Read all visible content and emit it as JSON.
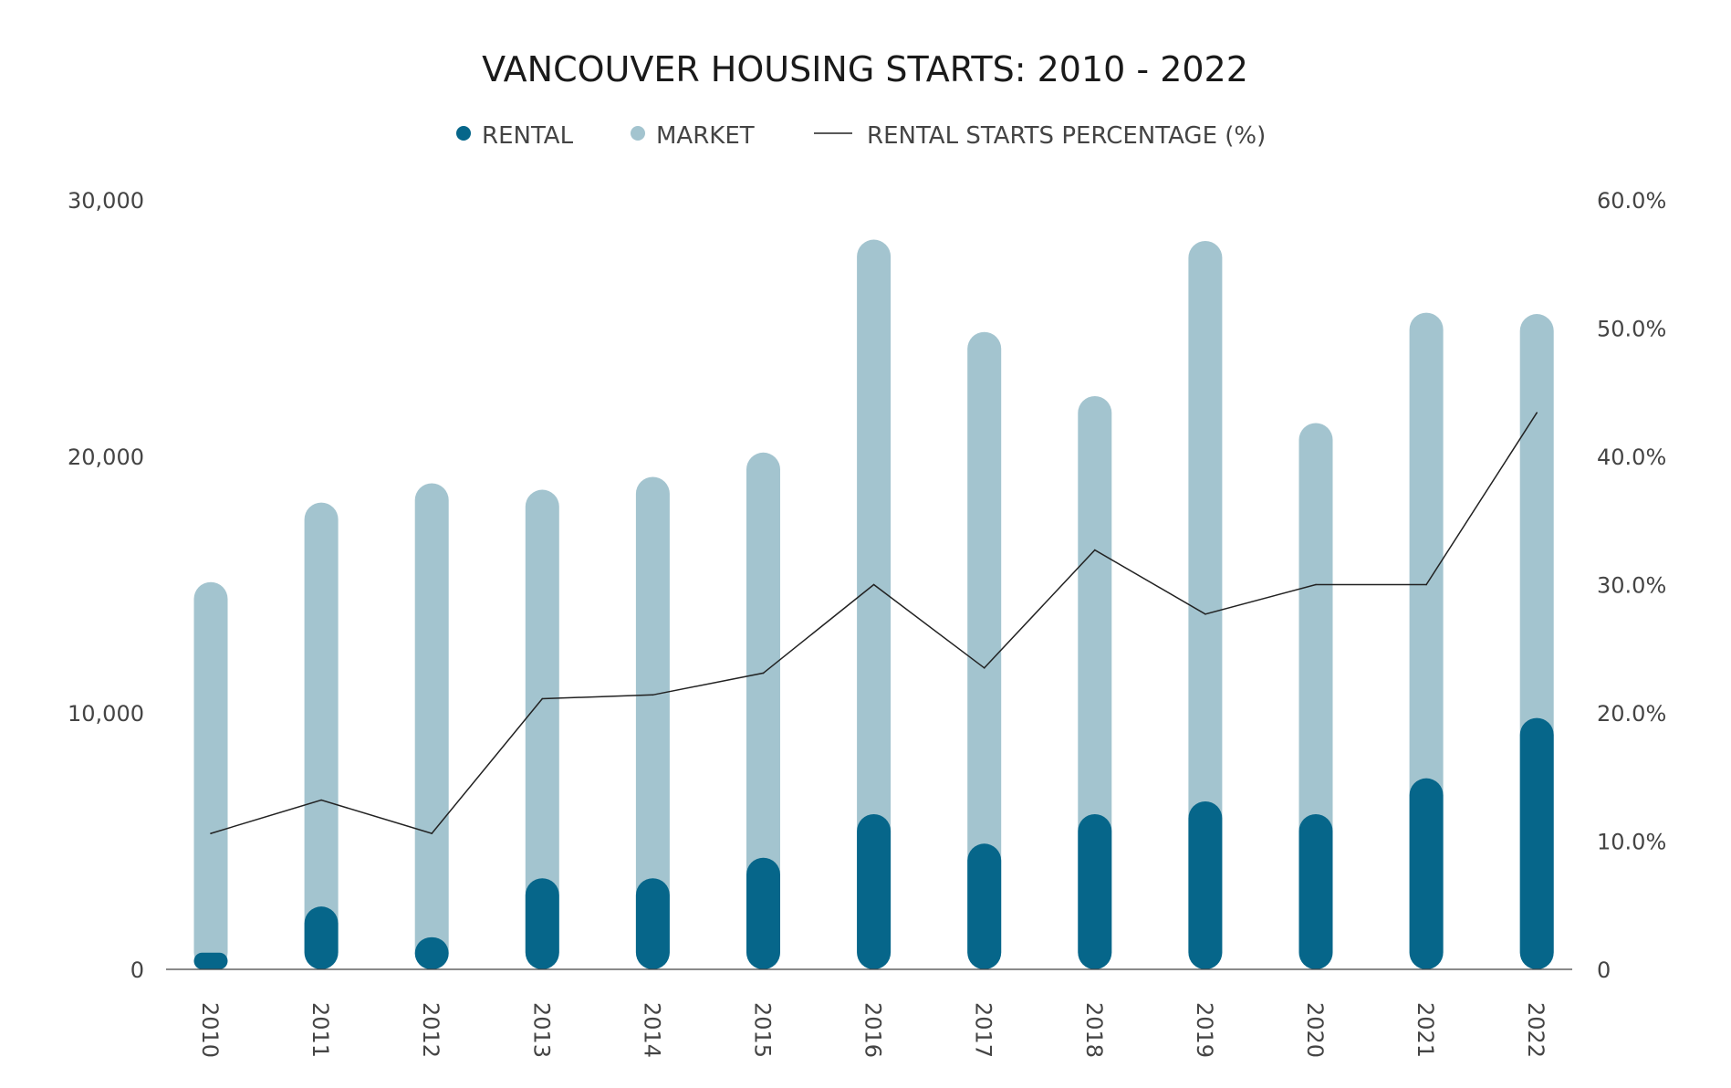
{
  "chart_data": {
    "type": "bar",
    "title": "VANCOUVER HOUSING STARTS: 2010 - 2022",
    "legend_placement": "top-center",
    "grid": false,
    "categories": [
      "2010",
      "2011",
      "2012",
      "2013",
      "2014",
      "2015",
      "2016",
      "2017",
      "2018",
      "2019",
      "2020",
      "2021",
      "2022"
    ],
    "series": [
      {
        "name": "RENTAL",
        "type": "bar",
        "axis": "left",
        "color": "#06668a",
        "values": [
          650,
          2450,
          1250,
          3550,
          3550,
          4350,
          6050,
          4900,
          6050,
          6550,
          6050,
          7450,
          9800
        ]
      },
      {
        "name": "MARKET",
        "type": "bar",
        "axis": "left",
        "color": "#a3c4cf",
        "values": [
          15100,
          18200,
          18950,
          18700,
          19200,
          20150,
          28450,
          24850,
          22350,
          28400,
          21300,
          25600,
          25550
        ]
      },
      {
        "name": "RENTAL STARTS PERCENTAGE (%)",
        "type": "line",
        "axis": "right",
        "color": "#222222",
        "values": [
          10.6,
          13.2,
          10.6,
          21.1,
          21.4,
          23.1,
          30.0,
          23.5,
          32.7,
          27.7,
          30.0,
          30.0,
          43.4
        ]
      }
    ],
    "y_left": {
      "range": [
        0,
        30000
      ],
      "ticks": [
        "0",
        "10,000",
        "20,000",
        "30,000"
      ],
      "tick_values": [
        0,
        10000,
        20000,
        30000
      ]
    },
    "y_right": {
      "range": [
        0,
        60
      ],
      "ticks": [
        "0",
        "10.0%",
        "20.0%",
        "30.0%",
        "40.0%",
        "50.0%",
        "60.0%"
      ],
      "tick_values": [
        0,
        10,
        20,
        30,
        40,
        50,
        60
      ]
    }
  }
}
